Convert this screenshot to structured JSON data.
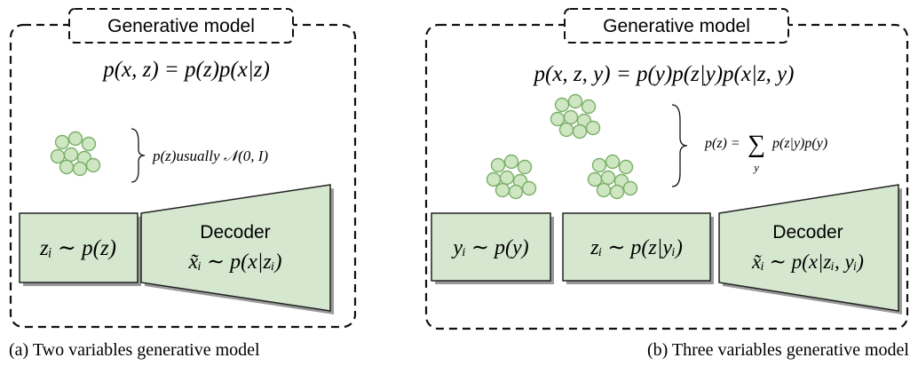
{
  "panels": [
    {
      "label": "Generative model",
      "equation": "p(x, z) = p(z)p(x|z)",
      "prior_note": "p(z)usually 𝒩(0, I)",
      "boxes": [
        "zᵢ ∼ p(z)"
      ],
      "decoder": {
        "title": "Decoder",
        "formula": "x̃ᵢ ∼ p(x|zᵢ)"
      },
      "caption": "(a)  Two variables generative model"
    },
    {
      "label": "Generative model",
      "equation": "p(x, z, y) = p(y)p(z|y)p(x|z, y)",
      "prior_note": {
        "lhs": "p(z) =",
        "sum": "∑",
        "index": "y",
        "rhs": "p(z|y)p(y)"
      },
      "boxes": [
        "yᵢ ∼ p(y)",
        "zᵢ ∼ p(z|yᵢ)"
      ],
      "decoder": {
        "title": "Decoder",
        "formula": "x̃ᵢ ∼ p(x|zᵢ, yᵢ)"
      },
      "caption": "(b)  Three variables generative model"
    }
  ]
}
